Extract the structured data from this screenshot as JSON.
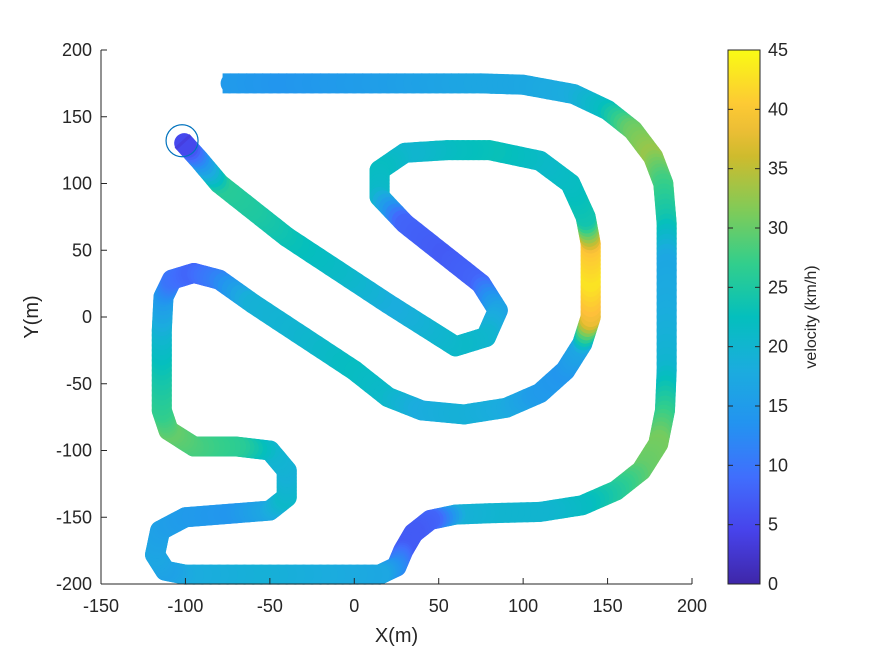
{
  "chart_data": {
    "type": "line",
    "title": "",
    "xlabel": "X(m)",
    "ylabel": "Y(m)",
    "xlim": [
      -150,
      200
    ],
    "ylim": [
      -200,
      200
    ],
    "x_ticks": [
      -150,
      -100,
      -50,
      0,
      50,
      100,
      150,
      200
    ],
    "y_ticks": [
      -200,
      -150,
      -100,
      -50,
      0,
      50,
      100,
      150,
      200
    ],
    "grid": false,
    "colormap": "parula",
    "colorbar": {
      "label": "velocity (km/h)",
      "range": [
        0,
        45
      ],
      "ticks": [
        0,
        5,
        10,
        15,
        20,
        25,
        30,
        35,
        40,
        45
      ]
    },
    "start_marker": {
      "shape": "circle",
      "x": -102,
      "y": 132
    },
    "series": [
      {
        "color_by": "velocity",
        "points": [
          {
            "x": -78,
            "y": 175,
            "v": 15
          },
          {
            "x": -40,
            "y": 175,
            "v": 14
          },
          {
            "x": 0,
            "y": 175,
            "v": 15
          },
          {
            "x": 40,
            "y": 175,
            "v": 16
          },
          {
            "x": 75,
            "y": 175,
            "v": 17
          },
          {
            "x": 100,
            "y": 174,
            "v": 17
          },
          {
            "x": 130,
            "y": 167,
            "v": 18
          },
          {
            "x": 150,
            "y": 155,
            "v": 22
          },
          {
            "x": 165,
            "y": 140,
            "v": 30
          },
          {
            "x": 177,
            "y": 120,
            "v": 33
          },
          {
            "x": 183,
            "y": 100,
            "v": 28
          },
          {
            "x": 185,
            "y": 70,
            "v": 24
          },
          {
            "x": 185,
            "y": 40,
            "v": 17
          },
          {
            "x": 185,
            "y": 0,
            "v": 18
          },
          {
            "x": 185,
            "y": -40,
            "v": 20
          },
          {
            "x": 184,
            "y": -70,
            "v": 26
          },
          {
            "x": 180,
            "y": -95,
            "v": 31
          },
          {
            "x": 170,
            "y": -115,
            "v": 30
          },
          {
            "x": 155,
            "y": -130,
            "v": 26
          },
          {
            "x": 135,
            "y": -141,
            "v": 22
          },
          {
            "x": 110,
            "y": -146,
            "v": 20
          },
          {
            "x": 80,
            "y": -147,
            "v": 20
          },
          {
            "x": 60,
            "y": -148,
            "v": 19
          },
          {
            "x": 45,
            "y": -152,
            "v": 8
          },
          {
            "x": 35,
            "y": -162,
            "v": 7
          },
          {
            "x": 29,
            "y": -175,
            "v": 7
          },
          {
            "x": 25,
            "y": -187,
            "v": 12
          },
          {
            "x": 15,
            "y": -193,
            "v": 17
          },
          {
            "x": -20,
            "y": -193,
            "v": 18
          },
          {
            "x": -60,
            "y": -193,
            "v": 19
          },
          {
            "x": -100,
            "y": -193,
            "v": 18
          },
          {
            "x": -112,
            "y": -190,
            "v": 16
          },
          {
            "x": -118,
            "y": -178,
            "v": 17
          },
          {
            "x": -115,
            "y": -160,
            "v": 16
          },
          {
            "x": -100,
            "y": -150,
            "v": 15
          },
          {
            "x": -70,
            "y": -147,
            "v": 14
          },
          {
            "x": -50,
            "y": -145,
            "v": 17
          },
          {
            "x": -40,
            "y": -135,
            "v": 21
          },
          {
            "x": -40,
            "y": -115,
            "v": 19
          },
          {
            "x": -50,
            "y": -100,
            "v": 20
          },
          {
            "x": -70,
            "y": -97,
            "v": 26
          },
          {
            "x": -95,
            "y": -97,
            "v": 28
          },
          {
            "x": -110,
            "y": -85,
            "v": 30
          },
          {
            "x": -114,
            "y": -70,
            "v": 27
          },
          {
            "x": -114,
            "y": -40,
            "v": 24
          },
          {
            "x": -114,
            "y": -10,
            "v": 20
          },
          {
            "x": -113,
            "y": 15,
            "v": 15
          },
          {
            "x": -108,
            "y": 28,
            "v": 10
          },
          {
            "x": -95,
            "y": 33,
            "v": 8
          },
          {
            "x": -80,
            "y": 28,
            "v": 11
          },
          {
            "x": -60,
            "y": 10,
            "v": 19
          },
          {
            "x": -30,
            "y": -15,
            "v": 20
          },
          {
            "x": 0,
            "y": -40,
            "v": 22
          },
          {
            "x": 20,
            "y": -60,
            "v": 21
          },
          {
            "x": 40,
            "y": -70,
            "v": 18
          },
          {
            "x": 65,
            "y": -73,
            "v": 19
          },
          {
            "x": 90,
            "y": -68,
            "v": 18
          },
          {
            "x": 110,
            "y": -57,
            "v": 15
          },
          {
            "x": 125,
            "y": -40,
            "v": 14
          },
          {
            "x": 135,
            "y": -20,
            "v": 17
          },
          {
            "x": 140,
            "y": 0,
            "v": 38
          },
          {
            "x": 140,
            "y": 30,
            "v": 43
          },
          {
            "x": 140,
            "y": 55,
            "v": 40
          },
          {
            "x": 137,
            "y": 75,
            "v": 24
          },
          {
            "x": 128,
            "y": 100,
            "v": 22
          },
          {
            "x": 110,
            "y": 117,
            "v": 21
          },
          {
            "x": 80,
            "y": 125,
            "v": 23
          },
          {
            "x": 55,
            "y": 125,
            "v": 22
          },
          {
            "x": 30,
            "y": 123,
            "v": 20
          },
          {
            "x": 15,
            "y": 110,
            "v": 22
          },
          {
            "x": 15,
            "y": 90,
            "v": 21
          },
          {
            "x": 30,
            "y": 70,
            "v": 8
          },
          {
            "x": 55,
            "y": 45,
            "v": 7
          },
          {
            "x": 75,
            "y": 25,
            "v": 8
          },
          {
            "x": 85,
            "y": 5,
            "v": 16
          },
          {
            "x": 78,
            "y": -15,
            "v": 20
          },
          {
            "x": 60,
            "y": -22,
            "v": 21
          },
          {
            "x": 45,
            "y": -10,
            "v": 20
          },
          {
            "x": 20,
            "y": 10,
            "v": 18
          },
          {
            "x": -10,
            "y": 35,
            "v": 21
          },
          {
            "x": -40,
            "y": 60,
            "v": 23
          },
          {
            "x": -60,
            "y": 80,
            "v": 25
          },
          {
            "x": -80,
            "y": 100,
            "v": 26
          },
          {
            "x": -92,
            "y": 118,
            "v": 14
          },
          {
            "x": -102,
            "y": 132,
            "v": 3
          }
        ]
      }
    ]
  }
}
